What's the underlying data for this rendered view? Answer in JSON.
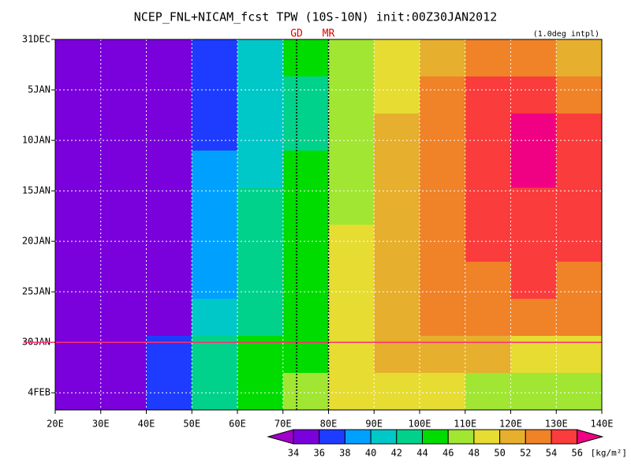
{
  "chart_data": {
    "type": "heatmap",
    "title": "NCEP_FNL+NICAM_fcst TPW (10S-10N) init:00Z30JAN2012",
    "note": "(1.0deg intpl)",
    "x_bins": [
      20,
      30,
      40,
      50,
      60,
      70,
      80,
      90,
      100,
      110,
      120,
      130,
      140
    ],
    "y_bins": [
      0,
      3.67,
      7.34,
      11.01,
      14.68,
      18.35,
      22.02,
      25.69,
      29.36,
      33.03,
      36.7
    ],
    "values": [
      [
        34,
        34,
        34,
        36,
        40,
        44,
        46,
        48,
        50,
        52,
        53,
        51
      ],
      [
        34,
        34,
        34,
        37,
        41,
        43,
        46,
        49,
        52,
        54,
        55,
        53
      ],
      [
        35,
        34,
        34,
        37,
        40,
        43,
        46,
        50,
        53,
        55,
        56,
        55
      ],
      [
        35,
        34,
        34,
        38,
        41,
        44,
        47,
        50,
        53,
        55,
        56,
        55
      ],
      [
        34,
        34,
        34,
        38,
        42,
        44,
        47,
        51,
        53,
        54,
        55,
        54
      ],
      [
        34,
        34,
        34,
        39,
        42,
        45,
        48,
        51,
        53,
        54,
        54,
        54
      ],
      [
        34,
        34,
        35,
        39,
        43,
        45,
        49,
        51,
        52,
        53,
        54,
        53
      ],
      [
        34,
        34,
        35,
        40,
        43,
        45,
        48,
        51,
        52,
        53,
        53,
        52
      ],
      [
        34,
        35,
        36,
        42,
        44,
        45,
        48,
        50,
        51,
        50,
        49,
        48
      ],
      [
        34,
        35,
        37,
        42,
        45,
        46,
        48,
        49,
        48,
        47,
        46,
        47
      ]
    ],
    "xlim": [
      20,
      140
    ],
    "ylim": [
      0,
      36.7
    ],
    "xticks": [
      {
        "value": 20,
        "label": "20E"
      },
      {
        "value": 30,
        "label": "30E"
      },
      {
        "value": 40,
        "label": "40E"
      },
      {
        "value": 50,
        "label": "50E"
      },
      {
        "value": 60,
        "label": "60E"
      },
      {
        "value": 70,
        "label": "70E"
      },
      {
        "value": 80,
        "label": "80E"
      },
      {
        "value": 90,
        "label": "90E"
      },
      {
        "value": 100,
        "label": "100E"
      },
      {
        "value": 110,
        "label": "110E"
      },
      {
        "value": 120,
        "label": "120E"
      },
      {
        "value": 130,
        "label": "130E"
      },
      {
        "value": 140,
        "label": "140E"
      }
    ],
    "yticks": [
      {
        "value": 0,
        "label": "31DEC"
      },
      {
        "value": 5,
        "label": "5JAN"
      },
      {
        "value": 10,
        "label": "10JAN"
      },
      {
        "value": 15,
        "label": "15JAN"
      },
      {
        "value": 20,
        "label": "20JAN"
      },
      {
        "value": 25,
        "label": "25JAN"
      },
      {
        "value": 30,
        "label": "30JAN"
      },
      {
        "value": 35,
        "label": "4FEB"
      }
    ],
    "grid": true,
    "init_line": 30,
    "markers": [
      {
        "label": "GD",
        "x": 73
      },
      {
        "label": "MR",
        "x": 80
      }
    ],
    "levels": [
      34,
      36,
      38,
      40,
      42,
      44,
      46,
      48,
      50,
      52,
      54,
      56
    ],
    "colors": [
      "#a000c8",
      "#7a00dc",
      "#1e3cff",
      "#00a0ff",
      "#00c8c8",
      "#00d28c",
      "#00dc00",
      "#a0e632",
      "#e6dc32",
      "#e6af2d",
      "#f08228",
      "#fa3c3c",
      "#f00082"
    ],
    "unit": "[kg/m²]"
  }
}
